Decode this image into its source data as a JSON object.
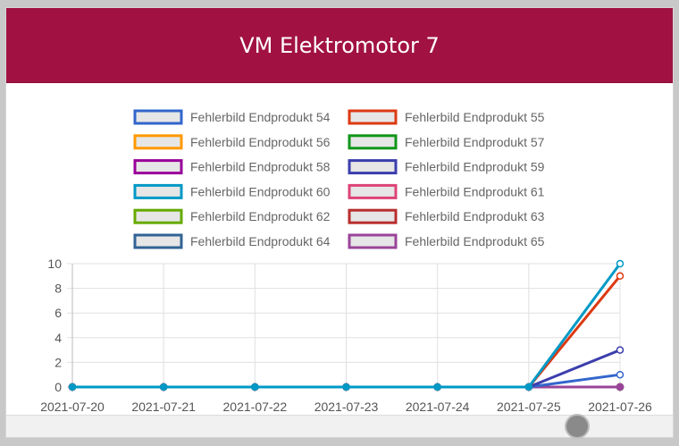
{
  "header": {
    "title": "VM Elektromotor 7"
  },
  "chart_data": {
    "type": "line",
    "title": "",
    "xlabel": "",
    "ylabel": "",
    "categories": [
      "2021-07-20",
      "2021-07-21",
      "2021-07-22",
      "2021-07-23",
      "2021-07-24",
      "2021-07-25",
      "2021-07-26"
    ],
    "ylim": [
      0,
      10
    ],
    "yticks": [
      0,
      2,
      4,
      6,
      8,
      10
    ],
    "grid": true,
    "legend_position": "top",
    "series": [
      {
        "name": "Fehlerbild Endprodukt 54",
        "color": "#3366cc",
        "values": [
          0,
          0,
          0,
          0,
          0,
          0,
          1
        ]
      },
      {
        "name": "Fehlerbild Endprodukt 55",
        "color": "#dc3912",
        "values": [
          0,
          0,
          0,
          0,
          0,
          0,
          9
        ]
      },
      {
        "name": "Fehlerbild Endprodukt 56",
        "color": "#ff9900",
        "values": [
          0,
          0,
          0,
          0,
          0,
          0,
          0
        ]
      },
      {
        "name": "Fehlerbild Endprodukt 57",
        "color": "#109618",
        "values": [
          0,
          0,
          0,
          0,
          0,
          0,
          0
        ]
      },
      {
        "name": "Fehlerbild Endprodukt 58",
        "color": "#990099",
        "values": [
          0,
          0,
          0,
          0,
          0,
          0,
          0
        ]
      },
      {
        "name": "Fehlerbild Endprodukt 59",
        "color": "#3b3eac",
        "values": [
          0,
          0,
          0,
          0,
          0,
          0,
          3
        ]
      },
      {
        "name": "Fehlerbild Endprodukt 60",
        "color": "#0099c6",
        "values": [
          0,
          0,
          0,
          0,
          0,
          0,
          10
        ]
      },
      {
        "name": "Fehlerbild Endprodukt 61",
        "color": "#dd4477",
        "values": [
          0,
          0,
          0,
          0,
          0,
          0,
          0
        ]
      },
      {
        "name": "Fehlerbild Endprodukt 62",
        "color": "#66aa00",
        "values": [
          0,
          0,
          0,
          0,
          0,
          0,
          0
        ]
      },
      {
        "name": "Fehlerbild Endprodukt 63",
        "color": "#b82e2e",
        "values": [
          0,
          0,
          0,
          0,
          0,
          0,
          0
        ]
      },
      {
        "name": "Fehlerbild Endprodukt 64",
        "color": "#316395",
        "values": [
          0,
          0,
          0,
          0,
          0,
          0,
          0
        ]
      },
      {
        "name": "Fehlerbild Endprodukt 65",
        "color": "#994499",
        "values": [
          0,
          0,
          0,
          0,
          0,
          0,
          0
        ]
      }
    ]
  }
}
